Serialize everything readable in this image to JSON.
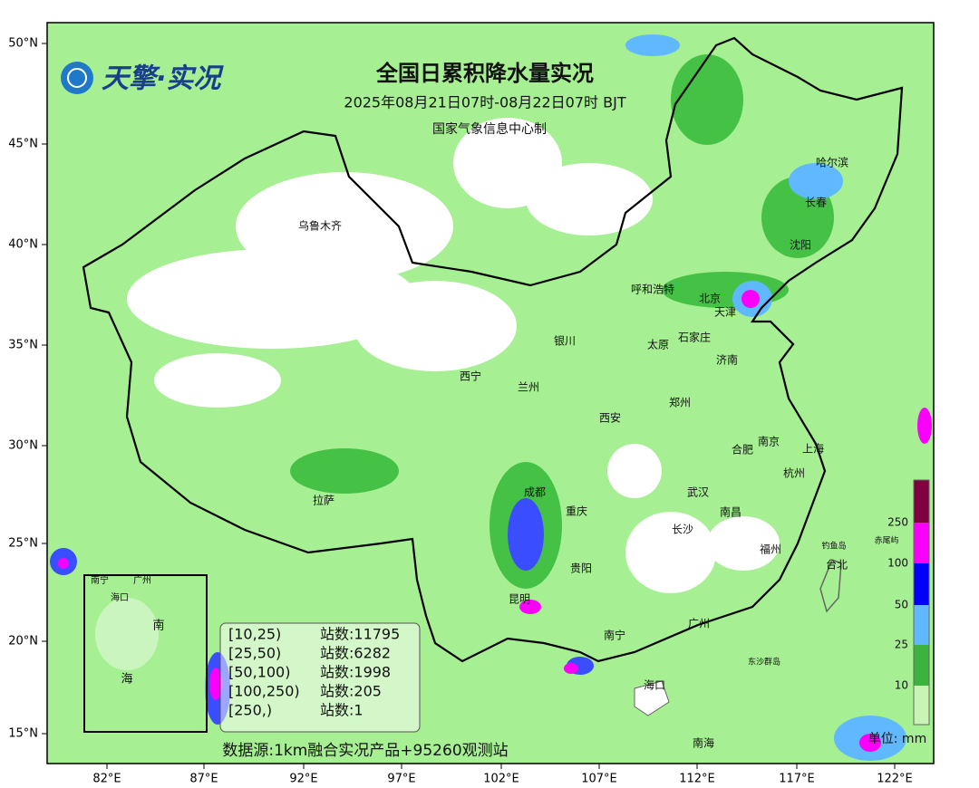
{
  "header": {
    "logo": "天擎·实况",
    "title": "全国日累积降水量实况",
    "subtitle": "2025年08月21日07时-08月22日07时 BJT",
    "credit": "国家气象信息中心制"
  },
  "lat_ticks": [
    "50°N",
    "45°N",
    "40°N",
    "35°N",
    "30°N",
    "25°N",
    "20°N",
    "15°N"
  ],
  "lon_ticks": [
    "82°E",
    "87°E",
    "92°E",
    "97°E",
    "102°E",
    "107°E",
    "112°E",
    "117°E",
    "122°E"
  ],
  "cities": [
    "乌鲁木齐",
    "呼和浩特",
    "北京",
    "天津",
    "沈阳",
    "长春",
    "哈尔滨",
    "银川",
    "太原",
    "石家庄",
    "济南",
    "西宁",
    "兰州",
    "郑州",
    "西安",
    "南京",
    "合肥",
    "上海",
    "杭州",
    "成都",
    "重庆",
    "武汉",
    "拉萨",
    "长沙",
    "南昌",
    "福州",
    "台北",
    "贵阳",
    "昆明",
    "广州",
    "南宁",
    "海口",
    "南海"
  ],
  "islands": [
    "钓鱼岛",
    "赤尾屿",
    "东沙群岛"
  ],
  "inset_labels": [
    "南宁",
    "广州",
    "海口",
    "南",
    "海"
  ],
  "legend": {
    "rows": [
      {
        "range": "[10,25)",
        "count": "站数:11795"
      },
      {
        "range": "[25,50)",
        "count": "站数:6282"
      },
      {
        "range": "[50,100)",
        "count": "站数:1998"
      },
      {
        "range": "[100,250)",
        "count": "站数:205"
      },
      {
        "range": "[250,)",
        "count": "站数:1"
      }
    ]
  },
  "colorbar": {
    "labels": [
      "250",
      "100",
      "50",
      "25",
      "10"
    ],
    "unit": "单位: mm"
  },
  "source": "数据源:1km融合实况产品+95260观测站"
}
